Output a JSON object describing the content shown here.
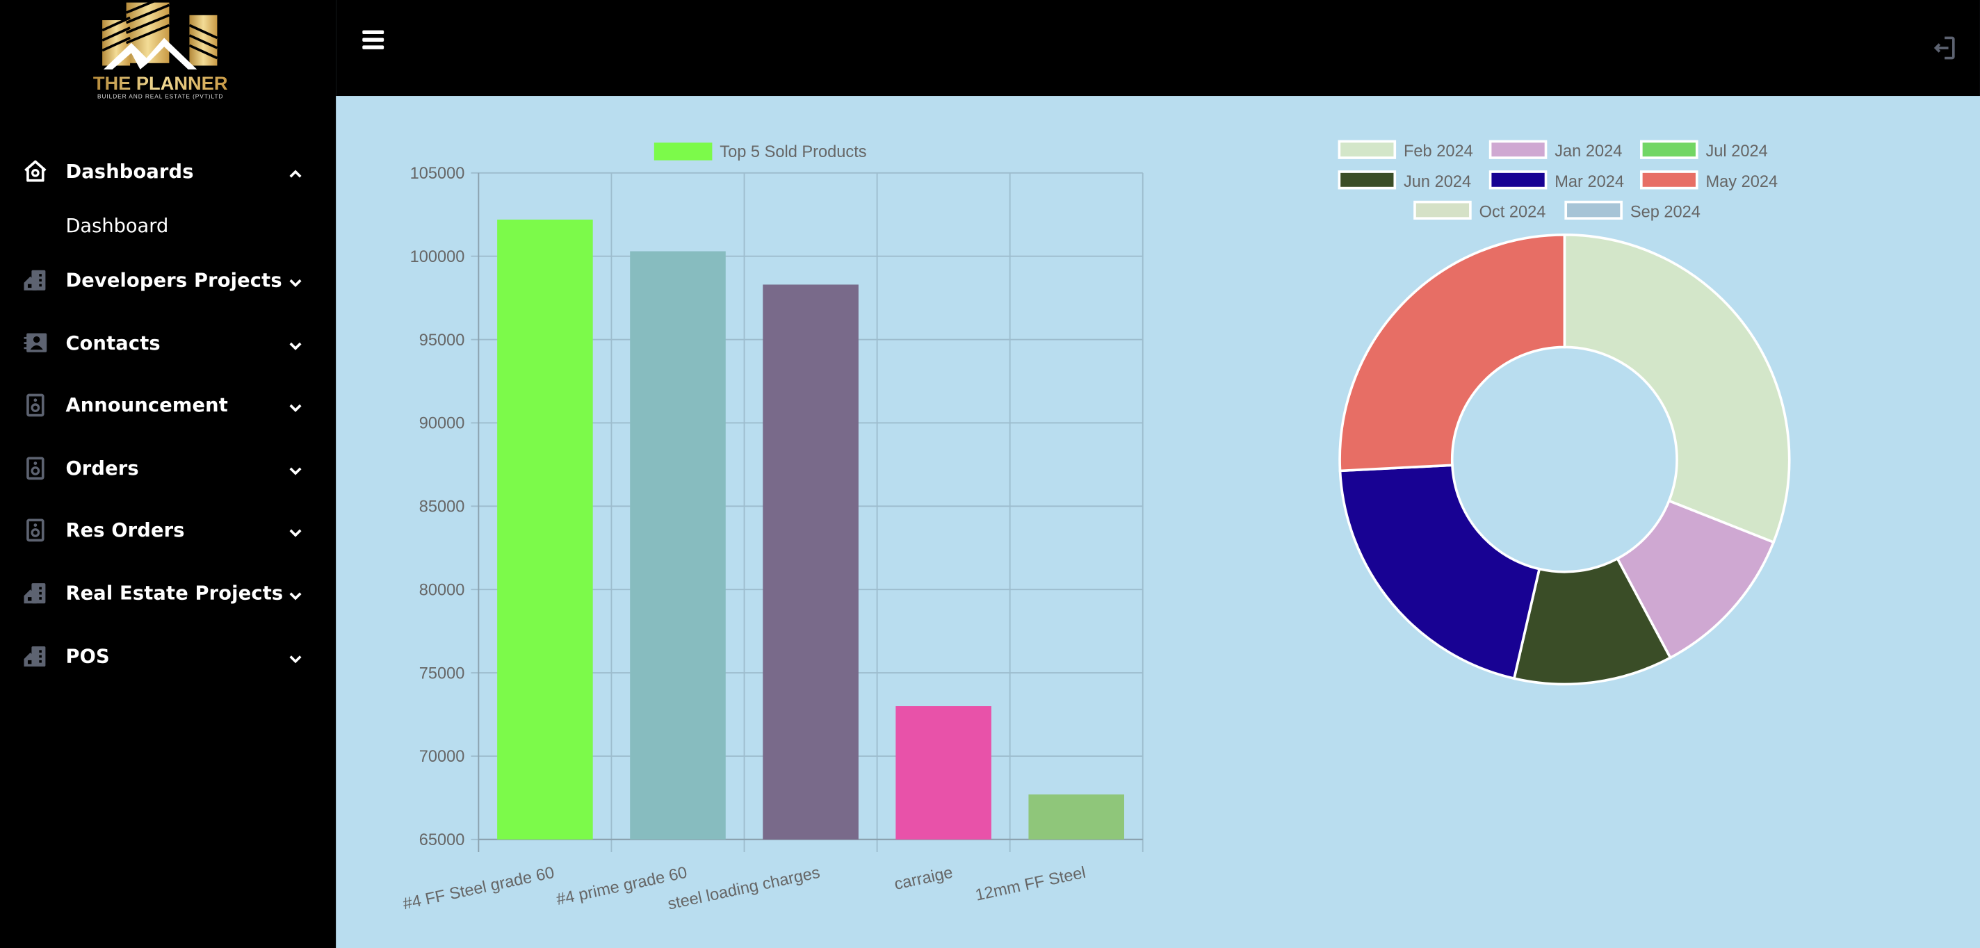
{
  "logo": {
    "title": "THE PLANNER",
    "subtitle": "BUILDER AND REAL ESTATE (PVT)LTD"
  },
  "sidebar": {
    "items": [
      {
        "label": "Dashboards",
        "icon": "home-icon",
        "expanded": true
      },
      {
        "label": "Developers Projects",
        "icon": "building-icon"
      },
      {
        "label": "Contacts",
        "icon": "contact-book-icon"
      },
      {
        "label": "Announcement",
        "icon": "speaker-icon"
      },
      {
        "label": "Orders",
        "icon": "speaker-icon"
      },
      {
        "label": "Res Orders",
        "icon": "speaker-icon"
      },
      {
        "label": "Real Estate Projects",
        "icon": "building-icon"
      },
      {
        "label": "POS",
        "icon": "building-icon"
      }
    ],
    "sub_items": [
      {
        "label": "Dashboard"
      }
    ]
  },
  "topbar": {
    "menu_icon": "hamburger-icon",
    "logout_icon": "logout-icon"
  },
  "chart_data": [
    {
      "type": "bar",
      "title": "",
      "legend": [
        "Top 5 Sold Products"
      ],
      "legend_color": "#7cfa4a",
      "legend_placement": "top",
      "categories": [
        "#4 FF Steel grade 60",
        "#4 prime grade 60",
        "steel loading charges",
        "carraige",
        "12mm FF Steel"
      ],
      "values": [
        102200,
        100300,
        98300,
        73000,
        67700
      ],
      "colors": [
        "#7cfa4a",
        "#87bcbf",
        "#796a8a",
        "#e852a9",
        "#8fc67a"
      ],
      "ylim": [
        65000,
        105000
      ],
      "yticks": [
        "105000",
        "100000",
        "95000",
        "90000",
        "85000",
        "80000",
        "75000",
        "70000",
        "65000"
      ],
      "ytick_values": [
        105000,
        100000,
        95000,
        90000,
        85000,
        80000,
        75000,
        70000,
        65000
      ],
      "grid": true,
      "xlabel": "",
      "ylabel": ""
    },
    {
      "type": "pie",
      "variant": "doughnut",
      "legend_placement": "top",
      "labels": [
        "Feb 2024",
        "Jan 2024",
        "Jul 2024",
        "Jun 2024",
        "Mar 2024",
        "May 2024",
        "Oct 2024",
        "Sep 2024"
      ],
      "values": [
        31.0,
        11.2,
        0,
        11.4,
        20.6,
        25.8,
        0,
        0
      ],
      "colors": [
        "#d3e6c9",
        "#cfa8d2",
        "#72d664",
        "#3a4d27",
        "#180293",
        "#e76e65",
        "#d5e1c7",
        "#a7c4d6"
      ]
    }
  ]
}
